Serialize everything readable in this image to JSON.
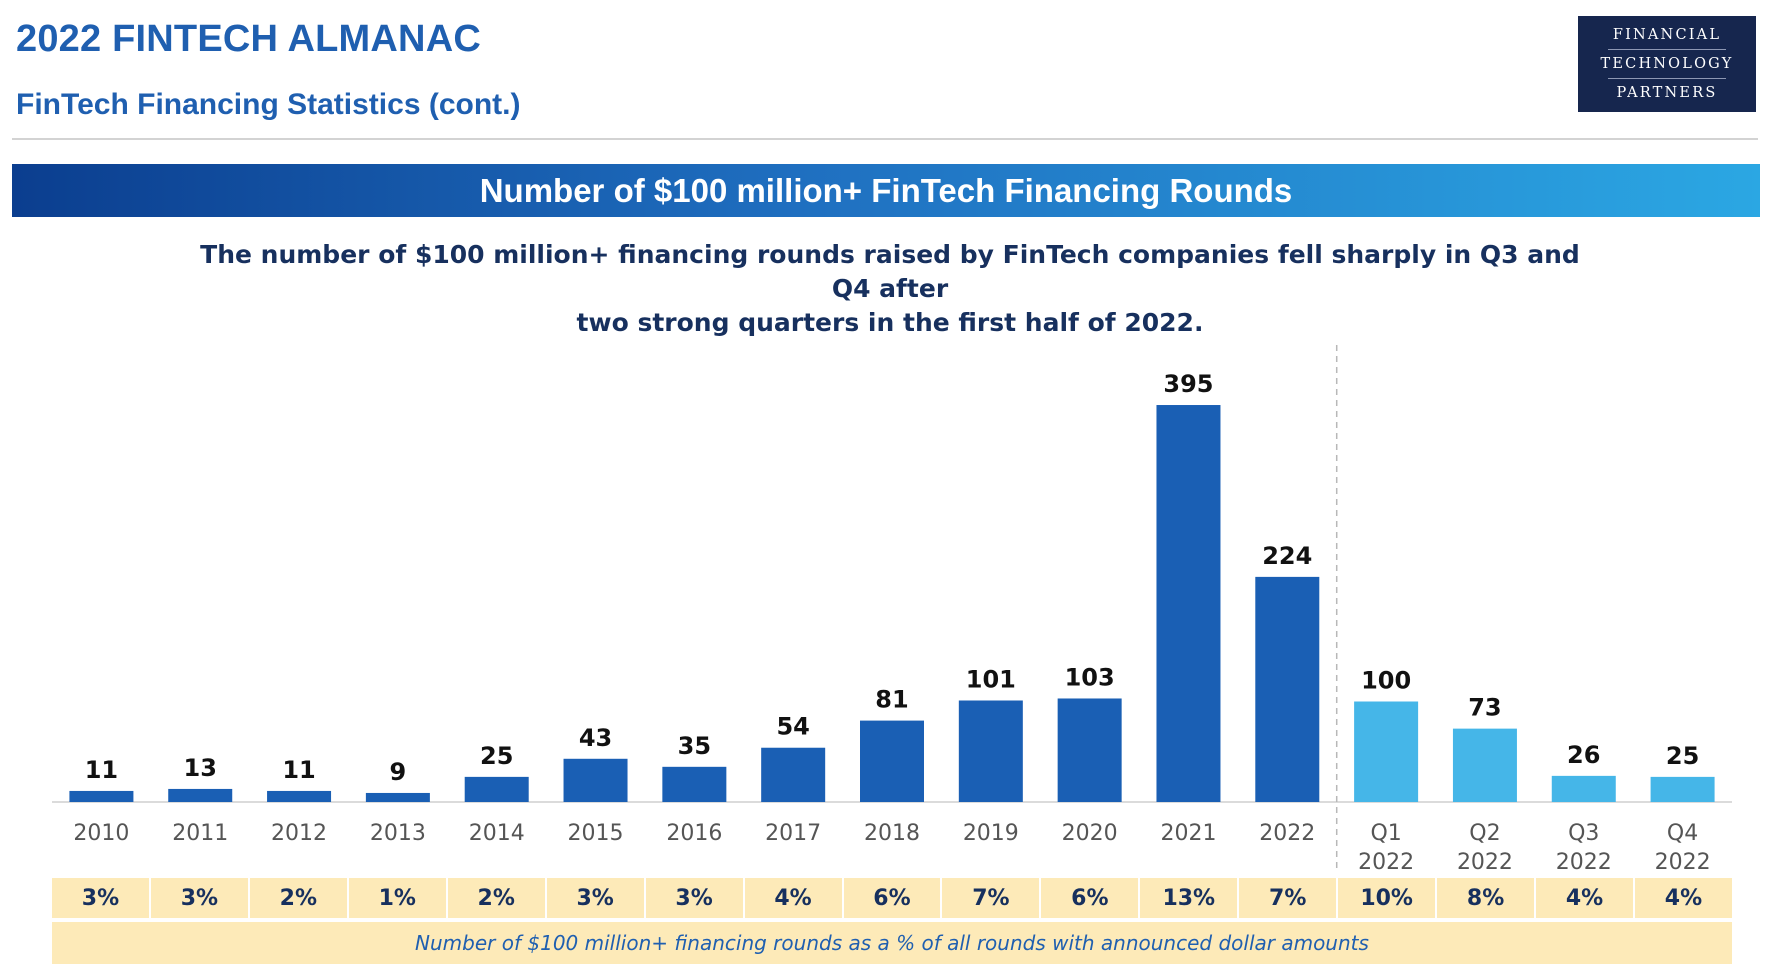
{
  "header": {
    "title": "2022 FINTECH ALMANAC",
    "subtitle": "FinTech Financing Statistics (cont.)"
  },
  "logo": {
    "line1": "FINANCIAL",
    "line2": "TECHNOLOGY",
    "line3": "PARTNERS"
  },
  "banner": {
    "title": "Number of $100 million+ FinTech Financing Rounds"
  },
  "description": {
    "line1": "The number of $100 million+ financing rounds raised by FinTech companies fell sharply in Q3 and Q4 after",
    "line2": "two strong quarters in the first half of 2022."
  },
  "colors": {
    "annual_bar": "#1a5fb4",
    "quarterly_bar": "#45b6e8",
    "strip_background": "#fdeab8",
    "title_blue": "#1f5fb0"
  },
  "chart_data": {
    "type": "bar",
    "title": "Number of $100 million+ FinTech Financing Rounds",
    "categories": [
      [
        "2010"
      ],
      [
        "2011"
      ],
      [
        "2012"
      ],
      [
        "2013"
      ],
      [
        "2014"
      ],
      [
        "2015"
      ],
      [
        "2016"
      ],
      [
        "2017"
      ],
      [
        "2018"
      ],
      [
        "2019"
      ],
      [
        "2020"
      ],
      [
        "2021"
      ],
      [
        "2022"
      ],
      [
        "Q1",
        "2022"
      ],
      [
        "Q2",
        "2022"
      ],
      [
        "Q3",
        "2022"
      ],
      [
        "Q4",
        "2022"
      ]
    ],
    "values": [
      11,
      13,
      11,
      9,
      25,
      43,
      35,
      54,
      81,
      101,
      103,
      395,
      224,
      100,
      73,
      26,
      25
    ],
    "groups": [
      "annual",
      "annual",
      "annual",
      "annual",
      "annual",
      "annual",
      "annual",
      "annual",
      "annual",
      "annual",
      "annual",
      "annual",
      "annual",
      "quarterly",
      "quarterly",
      "quarterly",
      "quarterly"
    ],
    "divider_after_index": 12,
    "ylim": [
      0,
      400
    ],
    "data_labels": true,
    "grid": false,
    "percent_of_rounds": [
      "3%",
      "3%",
      "2%",
      "1%",
      "2%",
      "3%",
      "3%",
      "4%",
      "6%",
      "7%",
      "6%",
      "13%",
      "7%",
      "10%",
      "8%",
      "4%",
      "4%"
    ],
    "percent_caption": "Number of $100 million+ financing rounds as a % of all rounds with announced dollar amounts"
  }
}
